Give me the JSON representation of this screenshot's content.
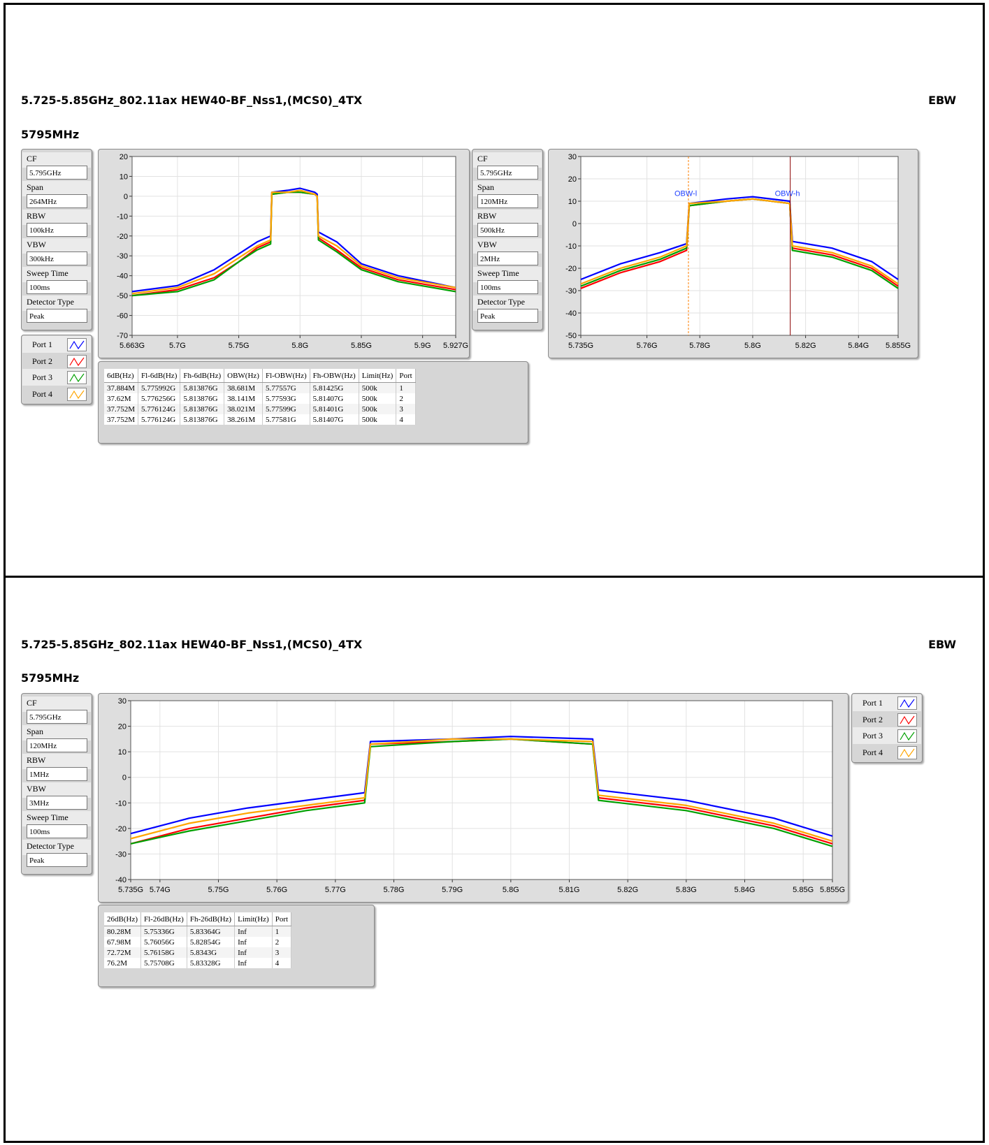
{
  "pages": [
    {
      "title": "5.725-5.85GHz_802.11ax HEW40-BF_Nss1,(MCS0)_4TX",
      "tag": "EBW",
      "freq": "5795MHz"
    },
    {
      "title": "5.725-5.85GHz_802.11ax HEW40-BF_Nss1,(MCS0)_4TX",
      "tag": "EBW",
      "freq": "5795MHz"
    }
  ],
  "settings": [
    [
      {
        "label": "CF",
        "value": "5.795GHz"
      },
      {
        "label": "Span",
        "value": "264MHz"
      },
      {
        "label": "RBW",
        "value": "100kHz"
      },
      {
        "label": "VBW",
        "value": "300kHz"
      },
      {
        "label": "Sweep Time",
        "value": "100ms"
      },
      {
        "label": "Detector Type",
        "value": "Peak"
      }
    ],
    [
      {
        "label": "CF",
        "value": "5.795GHz"
      },
      {
        "label": "Span",
        "value": "120MHz"
      },
      {
        "label": "RBW",
        "value": "500kHz"
      },
      {
        "label": "VBW",
        "value": "2MHz"
      },
      {
        "label": "Sweep Time",
        "value": "100ms"
      },
      {
        "label": "Detector Type",
        "value": "Peak"
      }
    ],
    [
      {
        "label": "CF",
        "value": "5.795GHz"
      },
      {
        "label": "Span",
        "value": "120MHz"
      },
      {
        "label": "RBW",
        "value": "1MHz"
      },
      {
        "label": "VBW",
        "value": "3MHz"
      },
      {
        "label": "Sweep Time",
        "value": "100ms"
      },
      {
        "label": "Detector Type",
        "value": "Peak"
      }
    ]
  ],
  "legend": [
    {
      "label": "Port 1",
      "color": "#0000ff"
    },
    {
      "label": "Port 2",
      "color": "#ff0000"
    },
    {
      "label": "Port 3",
      "color": "#00a000"
    },
    {
      "label": "Port 4",
      "color": "#ffa500"
    }
  ],
  "tables": {
    "obw": {
      "headers": [
        "6dB(Hz)",
        "Fl-6dB(Hz)",
        "Fh-6dB(Hz)",
        "OBW(Hz)",
        "Fl-OBW(Hz)",
        "Fh-OBW(Hz)",
        "Limit(Hz)",
        "Port"
      ],
      "rows": [
        [
          "37.884M",
          "5.775992G",
          "5.813876G",
          "38.681M",
          "5.77557G",
          "5.81425G",
          "500k",
          "1"
        ],
        [
          "37.62M",
          "5.776256G",
          "5.813876G",
          "38.141M",
          "5.77593G",
          "5.81407G",
          "500k",
          "2"
        ],
        [
          "37.752M",
          "5.776124G",
          "5.813876G",
          "38.021M",
          "5.77599G",
          "5.81401G",
          "500k",
          "3"
        ],
        [
          "37.752M",
          "5.776124G",
          "5.813876G",
          "38.261M",
          "5.77581G",
          "5.81407G",
          "500k",
          "4"
        ]
      ]
    },
    "ebw26": {
      "headers": [
        "26dB(Hz)",
        "Fl-26dB(Hz)",
        "Fh-26dB(Hz)",
        "Limit(Hz)",
        "Port"
      ],
      "rows": [
        [
          "80.28M",
          "5.75336G",
          "5.83364G",
          "Inf",
          "1"
        ],
        [
          "67.98M",
          "5.76056G",
          "5.82854G",
          "Inf",
          "2"
        ],
        [
          "72.72M",
          "5.76158G",
          "5.8343G",
          "Inf",
          "3"
        ],
        [
          "76.2M",
          "5.75708G",
          "5.83328G",
          "Inf",
          "4"
        ]
      ]
    }
  },
  "chart_data": [
    {
      "type": "line",
      "xlim": [
        5.663,
        5.927
      ],
      "ylim": [
        -70,
        20
      ],
      "xticks": [
        "5.663G",
        "5.7G",
        "5.75G",
        "5.8G",
        "5.85G",
        "5.9G",
        "5.927G"
      ],
      "xtick_values": [
        5.663,
        5.7,
        5.75,
        5.8,
        5.85,
        5.9,
        5.927
      ],
      "yticks": [
        20,
        10,
        0,
        -10,
        -20,
        -30,
        -40,
        -50,
        -60,
        -70
      ],
      "grid": true,
      "series": [
        {
          "name": "Port 1",
          "color": "#0000ff",
          "x": [
            5.663,
            5.7,
            5.73,
            5.75,
            5.765,
            5.776,
            5.777,
            5.79,
            5.8,
            5.812,
            5.814,
            5.815,
            5.83,
            5.85,
            5.88,
            5.927
          ],
          "y": [
            -48,
            -45,
            -37,
            -29,
            -23,
            -20,
            2,
            3,
            4,
            2,
            1,
            -18,
            -23,
            -34,
            -40,
            -46
          ]
        },
        {
          "name": "Port 2",
          "color": "#ff0000",
          "x": [
            5.663,
            5.7,
            5.73,
            5.75,
            5.765,
            5.776,
            5.777,
            5.79,
            5.8,
            5.812,
            5.814,
            5.815,
            5.83,
            5.85,
            5.88,
            5.927
          ],
          "y": [
            -50,
            -47,
            -41,
            -33,
            -26,
            -23,
            1,
            2,
            2,
            1,
            0,
            -21,
            -27,
            -36,
            -42,
            -47
          ]
        },
        {
          "name": "Port 3",
          "color": "#00a000",
          "x": [
            5.663,
            5.7,
            5.73,
            5.75,
            5.765,
            5.776,
            5.777,
            5.79,
            5.8,
            5.812,
            5.814,
            5.815,
            5.83,
            5.85,
            5.88,
            5.927
          ],
          "y": [
            -50,
            -48,
            -42,
            -33,
            -27,
            -24,
            1,
            2,
            2,
            1,
            0,
            -22,
            -28,
            -37,
            -43,
            -48
          ]
        },
        {
          "name": "Port 4",
          "color": "#ffa500",
          "x": [
            5.663,
            5.7,
            5.73,
            5.75,
            5.765,
            5.776,
            5.777,
            5.79,
            5.8,
            5.812,
            5.814,
            5.815,
            5.83,
            5.85,
            5.88,
            5.927
          ],
          "y": [
            -49,
            -46,
            -39,
            -31,
            -25,
            -22,
            2,
            2,
            3,
            1,
            0,
            -20,
            -25,
            -35,
            -41,
            -46
          ]
        }
      ]
    },
    {
      "type": "line",
      "xlim": [
        5.735,
        5.855
      ],
      "ylim": [
        -50,
        30
      ],
      "xticks": [
        "5.735G",
        "5.76G",
        "5.78G",
        "5.8G",
        "5.82G",
        "5.84G",
        "5.855G"
      ],
      "xtick_values": [
        5.735,
        5.76,
        5.78,
        5.8,
        5.82,
        5.84,
        5.855
      ],
      "yticks": [
        30,
        20,
        10,
        0,
        -10,
        -20,
        -30,
        -40,
        -50
      ],
      "grid": true,
      "markers": {
        "obw_l": 5.7757,
        "obw_h": 5.8142,
        "labels": [
          "OBW-l",
          "OBW-h"
        ]
      },
      "series": [
        {
          "name": "Port 1",
          "color": "#0000ff",
          "x": [
            5.735,
            5.75,
            5.765,
            5.775,
            5.776,
            5.79,
            5.8,
            5.814,
            5.815,
            5.83,
            5.845,
            5.855
          ],
          "y": [
            -25,
            -18,
            -13,
            -9,
            9,
            11,
            12,
            10,
            -8,
            -11,
            -17,
            -25
          ]
        },
        {
          "name": "Port 2",
          "color": "#ff0000",
          "x": [
            5.735,
            5.75,
            5.765,
            5.775,
            5.776,
            5.79,
            5.8,
            5.814,
            5.815,
            5.83,
            5.845,
            5.855
          ],
          "y": [
            -29,
            -22,
            -17,
            -12,
            8,
            10,
            11,
            9,
            -11,
            -14,
            -20,
            -28
          ]
        },
        {
          "name": "Port 3",
          "color": "#00a000",
          "x": [
            5.735,
            5.75,
            5.765,
            5.775,
            5.776,
            5.79,
            5.8,
            5.814,
            5.815,
            5.83,
            5.845,
            5.855
          ],
          "y": [
            -28,
            -21,
            -16,
            -11,
            8,
            10,
            11,
            9,
            -12,
            -15,
            -21,
            -29
          ]
        },
        {
          "name": "Port 4",
          "color": "#ffa500",
          "x": [
            5.735,
            5.75,
            5.765,
            5.775,
            5.776,
            5.79,
            5.8,
            5.814,
            5.815,
            5.83,
            5.845,
            5.855
          ],
          "y": [
            -27,
            -20,
            -15,
            -10,
            9,
            10,
            11,
            9,
            -10,
            -13,
            -19,
            -27
          ]
        }
      ]
    },
    {
      "type": "line",
      "xlim": [
        5.735,
        5.855
      ],
      "ylim": [
        -40,
        30
      ],
      "xticks": [
        "5.735G",
        "5.74G",
        "5.75G",
        "5.76G",
        "5.77G",
        "5.78G",
        "5.79G",
        "5.8G",
        "5.81G",
        "5.82G",
        "5.83G",
        "5.84G",
        "5.85G",
        "5.855G"
      ],
      "xtick_values": [
        5.735,
        5.74,
        5.75,
        5.76,
        5.77,
        5.78,
        5.79,
        5.8,
        5.81,
        5.82,
        5.83,
        5.84,
        5.85,
        5.855
      ],
      "yticks": [
        30,
        20,
        10,
        0,
        -10,
        -20,
        -30,
        -40
      ],
      "grid": true,
      "series": [
        {
          "name": "Port 1",
          "color": "#0000ff",
          "x": [
            5.735,
            5.745,
            5.755,
            5.765,
            5.775,
            5.776,
            5.79,
            5.8,
            5.814,
            5.815,
            5.83,
            5.845,
            5.855
          ],
          "y": [
            -22,
            -16,
            -12,
            -9,
            -6,
            14,
            15,
            16,
            15,
            -5,
            -9,
            -16,
            -23
          ]
        },
        {
          "name": "Port 2",
          "color": "#ff0000",
          "x": [
            5.735,
            5.745,
            5.755,
            5.765,
            5.775,
            5.776,
            5.79,
            5.8,
            5.814,
            5.815,
            5.83,
            5.845,
            5.855
          ],
          "y": [
            -26,
            -20,
            -16,
            -12,
            -9,
            13,
            14,
            15,
            13,
            -8,
            -12,
            -19,
            -26
          ]
        },
        {
          "name": "Port 3",
          "color": "#00a000",
          "x": [
            5.735,
            5.745,
            5.755,
            5.765,
            5.775,
            5.776,
            5.79,
            5.8,
            5.814,
            5.815,
            5.83,
            5.845,
            5.855
          ],
          "y": [
            -26,
            -21,
            -17,
            -13,
            -10,
            12,
            14,
            15,
            13,
            -9,
            -13,
            -20,
            -27
          ]
        },
        {
          "name": "Port 4",
          "color": "#ffa500",
          "x": [
            5.735,
            5.745,
            5.755,
            5.765,
            5.775,
            5.776,
            5.79,
            5.8,
            5.814,
            5.815,
            5.83,
            5.845,
            5.855
          ],
          "y": [
            -24,
            -18,
            -14,
            -11,
            -8,
            13,
            15,
            15,
            14,
            -7,
            -11,
            -18,
            -25
          ]
        }
      ]
    }
  ]
}
